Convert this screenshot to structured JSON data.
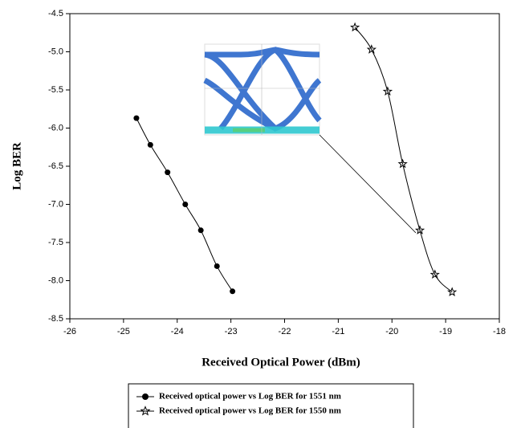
{
  "chart_data": {
    "type": "line",
    "x_label": "Received  Optical Power (dBm)",
    "y_label": "Log BER",
    "xlim": [
      -26,
      -18
    ],
    "xticks": [
      -26,
      -25,
      -24,
      -23,
      -22,
      -21,
      -20,
      -19,
      -18
    ],
    "ylim": [
      -8.5,
      -4.5
    ],
    "yticks": [
      -8.5,
      {
        "value": -8,
        "label": "-8.0"
      },
      -7.5,
      {
        "value": -7,
        "label": "-7.0"
      },
      -6.5,
      {
        "value": -6,
        "label": "-6.0"
      },
      -5.5,
      {
        "value": -5,
        "label": "-5.0"
      },
      -4.5
    ],
    "series": [
      {
        "name": "Received optical power vs Log BER for 1551 nm",
        "color": "#000000",
        "marker": "circle",
        "x": [
          -24.76,
          -24.5,
          -24.18,
          -23.85,
          -23.56,
          -23.26,
          -22.97
        ],
        "values": [
          -5.87,
          -6.22,
          -6.58,
          -7.0,
          -7.34,
          -7.81,
          -8.14
        ]
      },
      {
        "name": "Received optical power vs Log BER for 1550 nm",
        "color": "#000000",
        "marker": "star",
        "x": [
          -20.69,
          -20.38,
          -20.08,
          -19.8,
          -19.48,
          -19.2,
          -18.88
        ],
        "values": [
          -4.68,
          -4.97,
          -5.52,
          -6.47,
          -7.34,
          -7.92,
          -8.15
        ]
      }
    ]
  }
}
